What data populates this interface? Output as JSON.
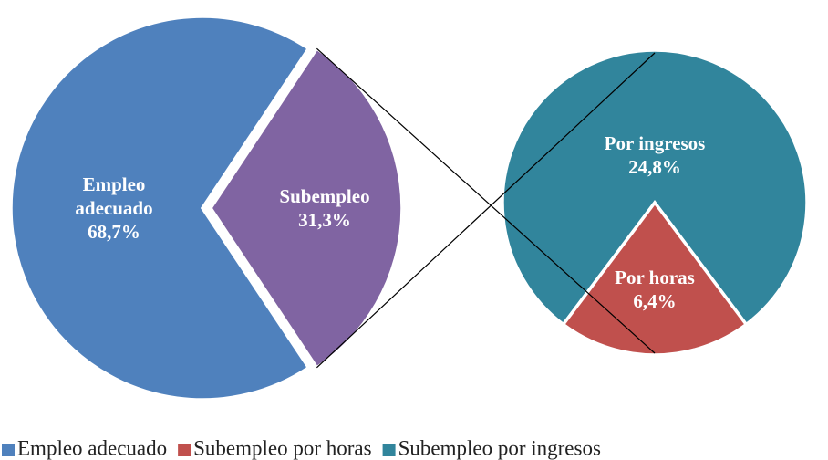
{
  "chart_data": {
    "type": "pie-of-pie",
    "primary": {
      "categories": [
        "Empleo adecuado",
        "Subempleo"
      ],
      "values": [
        68.7,
        31.3
      ],
      "value_labels": [
        "68,7%",
        "31,3%"
      ],
      "colors": [
        "#4f81bd",
        "#8064a2"
      ]
    },
    "secondary": {
      "categories": [
        "Por ingresos",
        "Por horas"
      ],
      "values": [
        24.8,
        6.4
      ],
      "value_labels": [
        "24,8%",
        "6,4%"
      ],
      "colors": [
        "#31859c",
        "#c0504d"
      ]
    },
    "legend": [
      {
        "name": "Empleo adecuado",
        "color": "#4f81bd"
      },
      {
        "name": "Subempleo por horas",
        "color": "#c0504d"
      },
      {
        "name": "Subempleo por ingresos",
        "color": "#31859c"
      }
    ]
  }
}
